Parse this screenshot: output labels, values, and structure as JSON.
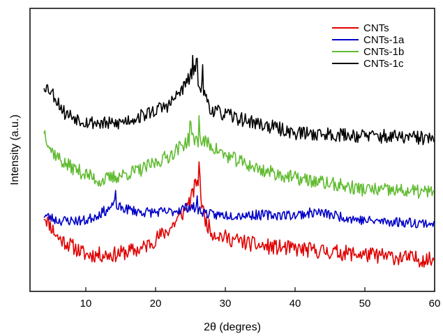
{
  "chart_data": {
    "type": "line",
    "title": "",
    "xlabel": "2θ (degres)",
    "ylabel": "Intensity (a.u.)",
    "xlim": [
      2,
      60
    ],
    "ylim": [
      0,
      1
    ],
    "x_ticks": [
      10,
      20,
      30,
      40,
      50,
      60
    ],
    "x_tick_labels": [
      "10",
      "20",
      "30",
      "40",
      "50",
      "60"
    ],
    "y_ticks_shown": false,
    "grid": false,
    "legend_position": "top-right",
    "x_range": [
      4,
      60
    ],
    "series": [
      {
        "name": "CNTs",
        "color": "#e00000",
        "knots": [
          [
            4,
            0.27
          ],
          [
            6,
            0.19
          ],
          [
            10,
            0.13
          ],
          [
            14,
            0.13
          ],
          [
            18,
            0.15
          ],
          [
            22,
            0.22
          ],
          [
            24,
            0.28
          ],
          [
            25,
            0.32
          ],
          [
            26,
            0.4
          ],
          [
            27,
            0.26
          ],
          [
            28,
            0.21
          ],
          [
            30,
            0.19
          ],
          [
            35,
            0.16
          ],
          [
            40,
            0.15
          ],
          [
            50,
            0.13
          ],
          [
            60,
            0.11
          ]
        ],
        "peaks": [
          [
            23.5,
            0.27
          ],
          [
            24.7,
            0.33
          ],
          [
            25.6,
            0.36
          ],
          [
            26.3,
            0.43
          ]
        ],
        "noise": 0.028,
        "seed": 11
      },
      {
        "name": "CNTs-1a",
        "color": "#0000c8",
        "knots": [
          [
            4,
            0.27
          ],
          [
            6,
            0.25
          ],
          [
            10,
            0.25
          ],
          [
            14,
            0.3
          ],
          [
            18,
            0.28
          ],
          [
            22,
            0.28
          ],
          [
            25,
            0.3
          ],
          [
            28,
            0.27
          ],
          [
            32,
            0.27
          ],
          [
            40,
            0.27
          ],
          [
            43,
            0.28
          ],
          [
            50,
            0.25
          ],
          [
            60,
            0.24
          ]
        ],
        "peaks": [
          [
            14.2,
            0.34
          ],
          [
            26.0,
            0.33
          ]
        ],
        "noise": 0.018,
        "seed": 23
      },
      {
        "name": "CNTs-1b",
        "color": "#60bb30",
        "knots": [
          [
            4,
            0.57
          ],
          [
            5,
            0.5
          ],
          [
            7,
            0.45
          ],
          [
            12,
            0.39
          ],
          [
            18,
            0.43
          ],
          [
            22,
            0.48
          ],
          [
            25,
            0.54
          ],
          [
            27,
            0.53
          ],
          [
            30,
            0.48
          ],
          [
            35,
            0.43
          ],
          [
            40,
            0.4
          ],
          [
            50,
            0.36
          ],
          [
            60,
            0.35
          ]
        ],
        "peaks": [
          [
            25.0,
            0.6
          ],
          [
            26.2,
            0.63
          ]
        ],
        "noise": 0.025,
        "seed": 37
      },
      {
        "name": "CNTs-1c",
        "color": "#000000",
        "knots": [
          [
            4,
            0.73
          ],
          [
            5,
            0.71
          ],
          [
            7,
            0.63
          ],
          [
            10,
            0.6
          ],
          [
            14,
            0.59
          ],
          [
            18,
            0.62
          ],
          [
            22,
            0.66
          ],
          [
            24,
            0.72
          ],
          [
            25.5,
            0.78
          ],
          [
            27,
            0.7
          ],
          [
            28,
            0.64
          ],
          [
            32,
            0.61
          ],
          [
            40,
            0.56
          ],
          [
            50,
            0.55
          ],
          [
            60,
            0.54
          ]
        ],
        "peaks": [
          [
            25.3,
            0.83
          ],
          [
            25.9,
            0.8
          ],
          [
            26.7,
            0.78
          ]
        ],
        "noise": 0.025,
        "seed": 53
      }
    ]
  }
}
